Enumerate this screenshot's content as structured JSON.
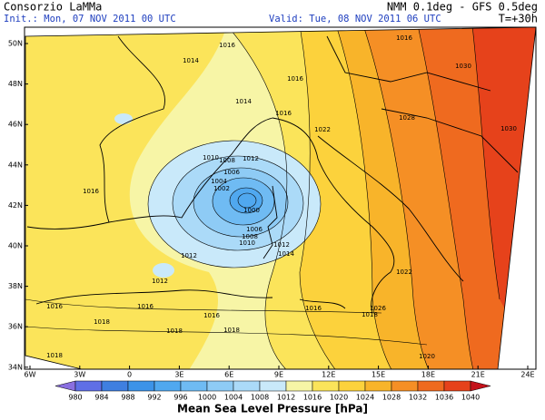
{
  "header": {
    "title": "Consorzio LaMMa",
    "model": "NMM 0.1deg - GFS 0.5deg",
    "init": "Init.: Mon, 07 NOV 2011 00 UTC",
    "valid": "Valid: Tue, 08 NOV 2011 06 UTC",
    "lead": "T=+30h"
  },
  "map": {
    "lat_labels": [
      "50N",
      "48N",
      "46N",
      "44N",
      "42N",
      "40N",
      "38N",
      "36N",
      "34N"
    ],
    "lon_labels": [
      "6W",
      "3W",
      "0",
      "3E",
      "6E",
      "9E",
      "12E",
      "15E",
      "18E",
      "21E",
      "24E"
    ],
    "isobar_labels": [
      "1014",
      "1016",
      "1014",
      "1016",
      "1022",
      "1030",
      "1028",
      "1030",
      "1010",
      "1008",
      "1012",
      "1006",
      "1004",
      "1002",
      "1000",
      "1006",
      "1008",
      "1010",
      "1012",
      "1014",
      "1012",
      "1012",
      "1016",
      "1016",
      "1018",
      "1018",
      "1016",
      "1016",
      "1018",
      "1018",
      "1018",
      "1020",
      "1026",
      "1022",
      "1016",
      "1016",
      "1016"
    ]
  },
  "colorbar": {
    "title": "Mean Sea Level Pressure [hPa]",
    "levels": [
      980,
      984,
      988,
      992,
      996,
      1000,
      1004,
      1008,
      1012,
      1016,
      1020,
      1024,
      1028,
      1032,
      1036,
      1040
    ],
    "colors": [
      "#8a6fe0",
      "#5f6fe6",
      "#3f7fe0",
      "#3c93e8",
      "#50a8ef",
      "#6fbbf3",
      "#8ecbf5",
      "#abdaf8",
      "#c9e9fa",
      "#f7f5a6",
      "#fbe45a",
      "#fcd23c",
      "#f8b42a",
      "#f58f25",
      "#ef6a1f",
      "#e6421b",
      "#c4121a"
    ]
  }
}
